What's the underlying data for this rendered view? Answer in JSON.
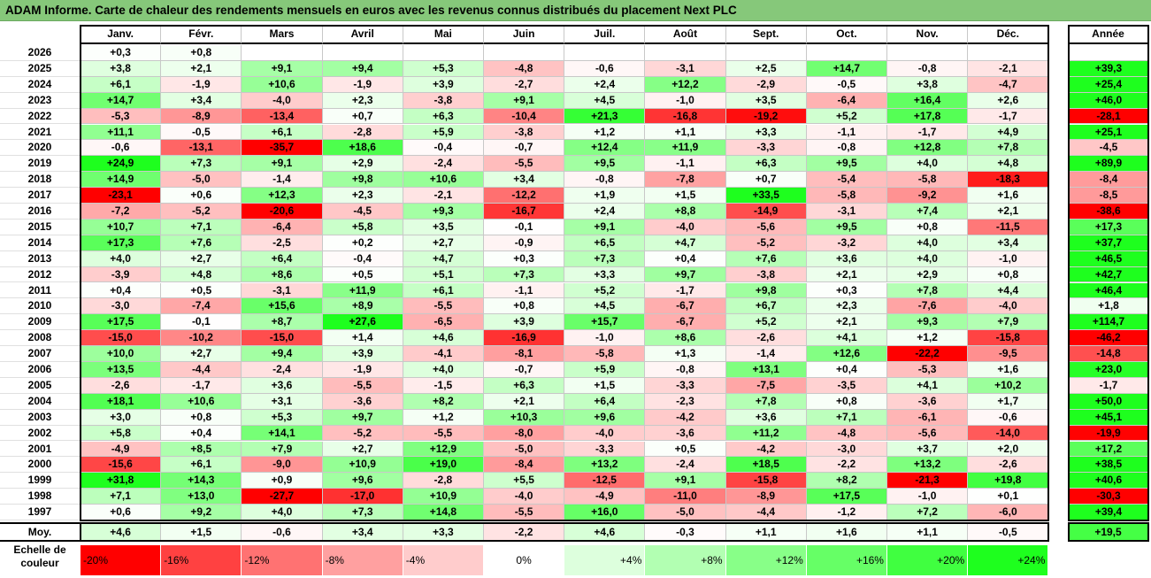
{
  "title": "ADAM Informe. Carte de chaleur des rendements mensuels en euros avec les revenus connus distribués du placement Next PLC",
  "months": [
    "Janv.",
    "Févr.",
    "Mars",
    "Avril",
    "Mai",
    "Juin",
    "Juil.",
    "Août",
    "Sept.",
    "Oct.",
    "Nov.",
    "Déc."
  ],
  "annee_label": "Année",
  "moy_label": "Moy.",
  "scale_label": "Echelle de couleur",
  "chart_data": {
    "type": "heatmap",
    "title": "ADAM Informe. Carte de chaleur des rendements mensuels en euros avec les revenus connus distribués du placement Next PLC",
    "columns": [
      "Janv.",
      "Févr.",
      "Mars",
      "Avril",
      "Mai",
      "Juin",
      "Juil.",
      "Août",
      "Sept.",
      "Oct.",
      "Nov.",
      "Déc."
    ],
    "rows": [
      {
        "year": "2026",
        "values": [
          "+0,3",
          "+0,8",
          "",
          "",
          "",
          "",
          "",
          "",
          "",
          "",
          "",
          ""
        ],
        "annee": ""
      },
      {
        "year": "2025",
        "values": [
          "+3,8",
          "+2,1",
          "+9,1",
          "+9,4",
          "+5,3",
          "-4,8",
          "-0,6",
          "-3,1",
          "+2,5",
          "+14,7",
          "-0,8",
          "-2,1"
        ],
        "annee": "+39,3"
      },
      {
        "year": "2024",
        "values": [
          "+6,1",
          "-1,9",
          "+10,6",
          "-1,9",
          "+3,9",
          "-2,7",
          "+2,4",
          "+12,2",
          "-2,9",
          "-0,5",
          "+3,8",
          "-4,7"
        ],
        "annee": "+25,4"
      },
      {
        "year": "2023",
        "values": [
          "+14,7",
          "+3,4",
          "-4,0",
          "+2,3",
          "-3,8",
          "+9,1",
          "+4,5",
          "-1,0",
          "+3,5",
          "-6,4",
          "+16,4",
          "+2,6"
        ],
        "annee": "+46,0"
      },
      {
        "year": "2022",
        "values": [
          "-5,3",
          "-8,9",
          "-13,4",
          "+0,7",
          "+6,3",
          "-10,4",
          "+21,3",
          "-16,8",
          "-19,2",
          "+5,2",
          "+17,8",
          "-1,7"
        ],
        "annee": "-28,1"
      },
      {
        "year": "2021",
        "values": [
          "+11,1",
          "-0,5",
          "+6,1",
          "-2,8",
          "+5,9",
          "-3,8",
          "+1,2",
          "+1,1",
          "+3,3",
          "-1,1",
          "-1,7",
          "+4,9"
        ],
        "annee": "+25,1"
      },
      {
        "year": "2020",
        "values": [
          "-0,6",
          "-13,1",
          "-35,7",
          "+18,6",
          "-0,4",
          "-0,7",
          "+12,4",
          "+11,9",
          "-3,3",
          "-0,8",
          "+12,8",
          "+7,8"
        ],
        "annee": "-4,5"
      },
      {
        "year": "2019",
        "values": [
          "+24,9",
          "+7,3",
          "+9,1",
          "+2,9",
          "-2,4",
          "-5,5",
          "+9,5",
          "-1,1",
          "+6,3",
          "+9,5",
          "+4,0",
          "+4,8"
        ],
        "annee": "+89,9"
      },
      {
        "year": "2018",
        "values": [
          "+14,9",
          "-5,0",
          "-1,4",
          "+9,8",
          "+10,6",
          "+3,4",
          "-0,8",
          "-7,8",
          "+0,7",
          "-5,4",
          "-5,8",
          "-18,3"
        ],
        "annee": "-8,4"
      },
      {
        "year": "2017",
        "values": [
          "-23,1",
          "+0,6",
          "+12,3",
          "+2,3",
          "-2,1",
          "-12,2",
          "+1,9",
          "+1,5",
          "+33,5",
          "-5,8",
          "-9,2",
          "+1,6"
        ],
        "annee": "-8,5"
      },
      {
        "year": "2016",
        "values": [
          "-7,2",
          "-5,2",
          "-20,6",
          "-4,5",
          "+9,3",
          "-16,7",
          "+2,4",
          "+8,8",
          "-14,9",
          "-3,1",
          "+7,4",
          "+2,1"
        ],
        "annee": "-38,6"
      },
      {
        "year": "2015",
        "values": [
          "+10,7",
          "+7,1",
          "-6,4",
          "+5,8",
          "+3,5",
          "-0,1",
          "+9,1",
          "-4,0",
          "-5,6",
          "+9,5",
          "+0,8",
          "-11,5"
        ],
        "annee": "+17,3"
      },
      {
        "year": "2014",
        "values": [
          "+17,3",
          "+7,6",
          "-2,5",
          "+0,2",
          "+2,7",
          "-0,9",
          "+6,5",
          "+4,7",
          "-5,2",
          "-3,2",
          "+4,0",
          "+3,4"
        ],
        "annee": "+37,7"
      },
      {
        "year": "2013",
        "values": [
          "+4,0",
          "+2,7",
          "+6,4",
          "-0,4",
          "+4,7",
          "+0,3",
          "+7,3",
          "+0,4",
          "+7,6",
          "+3,6",
          "+4,0",
          "-1,0"
        ],
        "annee": "+46,5"
      },
      {
        "year": "2012",
        "values": [
          "-3,9",
          "+4,8",
          "+8,6",
          "+0,5",
          "+5,1",
          "+7,3",
          "+3,3",
          "+9,7",
          "-3,8",
          "+2,1",
          "+2,9",
          "+0,8"
        ],
        "annee": "+42,7"
      },
      {
        "year": "2011",
        "values": [
          "+0,4",
          "+0,5",
          "-3,1",
          "+11,9",
          "+6,1",
          "-1,1",
          "+5,2",
          "-1,7",
          "+9,8",
          "+0,3",
          "+7,8",
          "+4,4"
        ],
        "annee": "+46,4"
      },
      {
        "year": "2010",
        "values": [
          "-3,0",
          "-7,4",
          "+15,6",
          "+8,9",
          "-5,5",
          "+0,8",
          "+4,5",
          "-6,7",
          "+6,7",
          "+2,3",
          "-7,6",
          "-4,0"
        ],
        "annee": "+1,8"
      },
      {
        "year": "2009",
        "values": [
          "+17,5",
          "-0,1",
          "+8,7",
          "+27,6",
          "-6,5",
          "+3,9",
          "+15,7",
          "-6,7",
          "+5,2",
          "+2,1",
          "+9,3",
          "+7,9"
        ],
        "annee": "+114,7"
      },
      {
        "year": "2008",
        "values": [
          "-15,0",
          "-10,2",
          "-15,0",
          "+1,4",
          "+4,6",
          "-16,9",
          "-1,0",
          "+8,6",
          "-2,6",
          "+4,1",
          "+1,2",
          "-15,8"
        ],
        "annee": "-46,2"
      },
      {
        "year": "2007",
        "values": [
          "+10,0",
          "+2,7",
          "+9,4",
          "+3,9",
          "-4,1",
          "-8,1",
          "-5,8",
          "+1,3",
          "-1,4",
          "+12,6",
          "-22,2",
          "-9,5"
        ],
        "annee": "-14,8"
      },
      {
        "year": "2006",
        "values": [
          "+13,5",
          "-4,4",
          "-2,4",
          "-1,9",
          "+4,0",
          "-0,7",
          "+5,9",
          "-0,8",
          "+13,1",
          "+0,4",
          "-5,3",
          "+1,6"
        ],
        "annee": "+23,0"
      },
      {
        "year": "2005",
        "values": [
          "-2,6",
          "-1,7",
          "+3,6",
          "-5,5",
          "-1,5",
          "+6,3",
          "+1,5",
          "-3,3",
          "-7,5",
          "-3,5",
          "+4,1",
          "+10,2"
        ],
        "annee": "-1,7"
      },
      {
        "year": "2004",
        "values": [
          "+18,1",
          "+10,6",
          "+3,1",
          "-3,6",
          "+8,2",
          "+2,1",
          "+6,4",
          "-2,3",
          "+7,8",
          "+0,8",
          "-3,6",
          "+1,7"
        ],
        "annee": "+50,0"
      },
      {
        "year": "2003",
        "values": [
          "+3,0",
          "+0,8",
          "+5,3",
          "+9,7",
          "+1,2",
          "+10,3",
          "+9,6",
          "-4,2",
          "+3,6",
          "+7,1",
          "-6,1",
          "-0,6"
        ],
        "annee": "+45,1"
      },
      {
        "year": "2002",
        "values": [
          "+5,8",
          "+0,4",
          "+14,1",
          "-5,2",
          "-5,5",
          "-8,0",
          "-4,0",
          "-3,6",
          "+11,2",
          "-4,8",
          "-5,6",
          "-14,0"
        ],
        "annee": "-19,9"
      },
      {
        "year": "2001",
        "values": [
          "-4,9",
          "+8,5",
          "+7,9",
          "+2,7",
          "+12,9",
          "-5,0",
          "-3,3",
          "+0,5",
          "-4,2",
          "-3,0",
          "+3,7",
          "+2,0"
        ],
        "annee": "+17,2"
      },
      {
        "year": "2000",
        "values": [
          "-15,6",
          "+6,1",
          "-9,0",
          "+10,9",
          "+19,0",
          "-8,4",
          "+13,2",
          "-2,4",
          "+18,5",
          "-2,2",
          "+13,2",
          "-2,6"
        ],
        "annee": "+38,5"
      },
      {
        "year": "1999",
        "values": [
          "+31,8",
          "+14,3",
          "+0,9",
          "+9,6",
          "-2,8",
          "+5,5",
          "-12,5",
          "+9,1",
          "-15,8",
          "+8,2",
          "-21,3",
          "+19,8"
        ],
        "annee": "+40,6"
      },
      {
        "year": "1998",
        "values": [
          "+7,1",
          "+13,0",
          "-27,7",
          "-17,0",
          "+10,9",
          "-4,0",
          "-4,9",
          "-11,0",
          "-8,9",
          "+17,5",
          "-1,0",
          "+0,1"
        ],
        "annee": "-30,3"
      },
      {
        "year": "1997",
        "values": [
          "+0,6",
          "+9,2",
          "+4,0",
          "+7,3",
          "+14,8",
          "-5,5",
          "+16,0",
          "-5,0",
          "-4,4",
          "-1,2",
          "+7,2",
          "-6,0"
        ],
        "annee": "+39,4"
      }
    ],
    "averages": [
      "+4,6",
      "+1,5",
      "-0,6",
      "+3,4",
      "+3,3",
      "-2,2",
      "+4,6",
      "-0,3",
      "+1,1",
      "+1,6",
      "+1,1",
      "-0,5"
    ],
    "average_annee": "+19,5",
    "color_scale": [
      {
        "label": "-20%",
        "value": -20,
        "color": "#ff0000"
      },
      {
        "label": "-16%",
        "value": -16,
        "color": "#ff4141"
      },
      {
        "label": "-12%",
        "value": -12,
        "color": "#ff7272"
      },
      {
        "label": "-8%",
        "value": -8,
        "color": "#ffa0a0"
      },
      {
        "label": "-4%",
        "value": -4,
        "color": "#ffcccc"
      },
      {
        "label": "0%",
        "value": 0,
        "color": "#ffffff"
      },
      {
        "label": "+4%",
        "value": 4,
        "color": "#ddffdd"
      },
      {
        "label": "+8%",
        "value": 8,
        "color": "#b2ffb2"
      },
      {
        "label": "+12%",
        "value": 12,
        "color": "#88ff88"
      },
      {
        "label": "+16%",
        "value": 16,
        "color": "#66ff66"
      },
      {
        "label": "+20%",
        "value": 20,
        "color": "#40ff40"
      },
      {
        "label": "+24%",
        "value": 24,
        "color": "#1eff1e"
      }
    ]
  }
}
